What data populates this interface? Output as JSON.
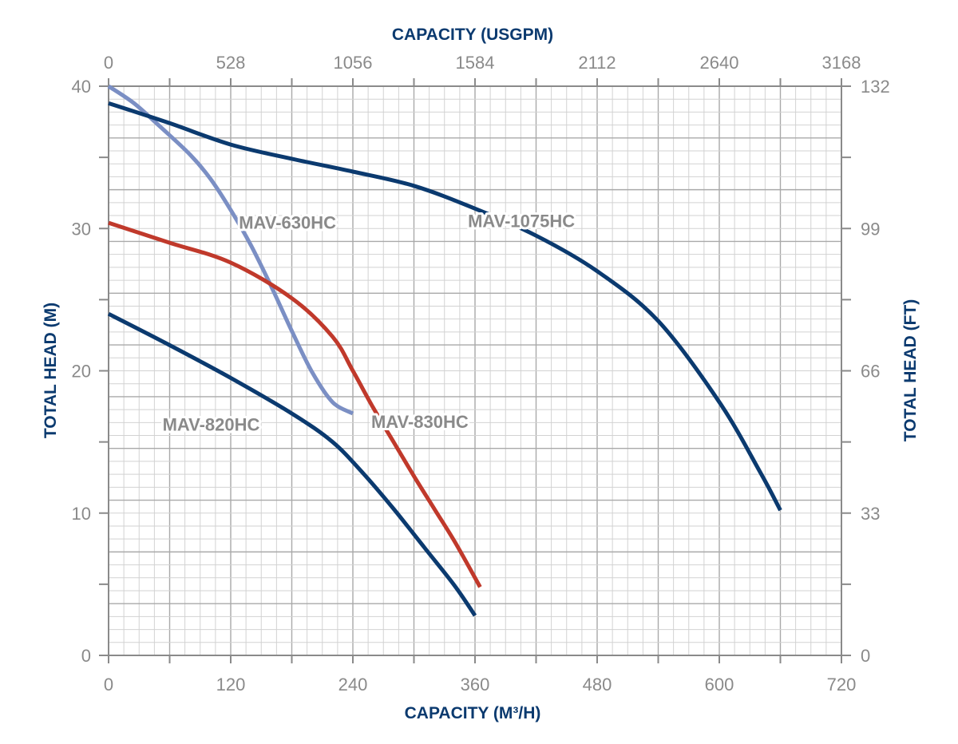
{
  "chart_data": {
    "type": "line",
    "bottom_axis": {
      "title": "CAPACITY (M³/H)",
      "range": [
        0,
        720
      ],
      "ticks": [
        "0",
        "120",
        "240",
        "360",
        "480",
        "600",
        "720"
      ]
    },
    "top_axis": {
      "title": "CAPACITY (USGPM)",
      "range": [
        0,
        3168
      ],
      "ticks": [
        "0",
        "528",
        "1056",
        "1584",
        "2112",
        "2640",
        "3168"
      ]
    },
    "left_axis": {
      "title": "TOTAL HEAD (M)",
      "range": [
        0,
        40
      ],
      "ticks": [
        "0",
        "10",
        "20",
        "30",
        "40"
      ]
    },
    "right_axis": {
      "title": "TOTAL HEAD (FT)",
      "range": [
        0,
        132
      ],
      "ticks": [
        "0",
        "33",
        "66",
        "99",
        "132"
      ]
    },
    "grid": true,
    "series": [
      {
        "name": "MAV-630HC",
        "color": "#7b8fc4",
        "x": [
          0,
          25,
          50,
          80,
          100,
          120,
          140,
          160,
          180,
          200,
          220,
          240
        ],
        "y": [
          40,
          38.8,
          37.2,
          35.2,
          33.5,
          31.3,
          28.8,
          25.9,
          22.8,
          19.9,
          17.8,
          17
        ]
      },
      {
        "name": "MAV-830HC",
        "color": "#c0392b",
        "x": [
          0,
          60,
          120,
          180,
          220,
          240,
          260,
          280,
          300,
          320,
          340,
          365
        ],
        "y": [
          30.4,
          29,
          27.6,
          25.1,
          22.4,
          20,
          17.4,
          15,
          12.6,
          10.3,
          8,
          4.8
        ]
      },
      {
        "name": "MAV-820HC",
        "color": "#0b3a6f",
        "x": [
          0,
          60,
          120,
          180,
          220,
          250,
          280,
          310,
          340,
          360
        ],
        "y": [
          24,
          21.8,
          19.5,
          17,
          15,
          12.8,
          10.3,
          7.6,
          4.9,
          2.8
        ]
      },
      {
        "name": "MAV-1075HC",
        "color": "#0b3a6f",
        "x": [
          0,
          60,
          120,
          180,
          240,
          300,
          360,
          420,
          480,
          540,
          600,
          640,
          660
        ],
        "y": [
          38.8,
          37.4,
          35.9,
          34.9,
          34,
          33,
          31.4,
          29.5,
          27,
          23.5,
          17.8,
          12.9,
          10.2
        ]
      }
    ]
  }
}
